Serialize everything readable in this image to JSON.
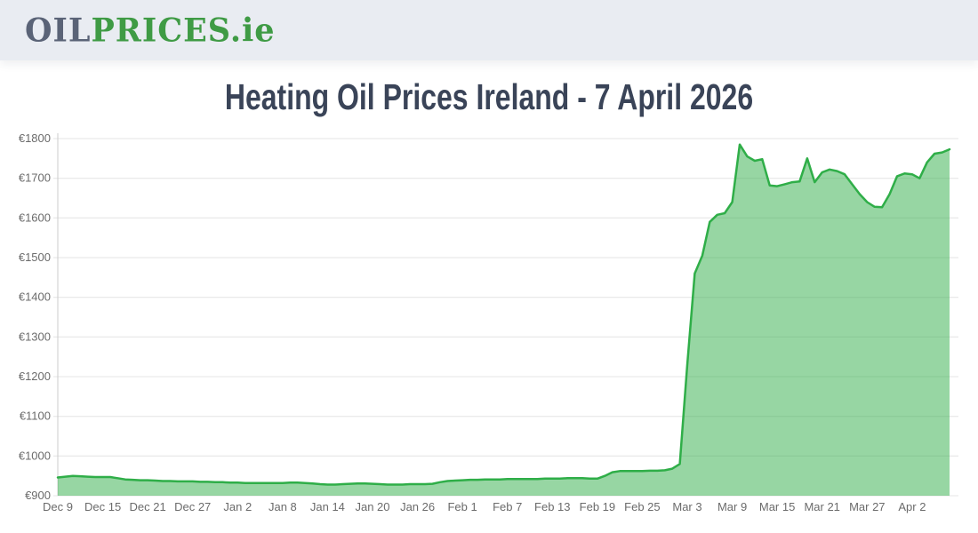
{
  "header": {
    "logo_part1": "OIL",
    "logo_part2": "PRICES",
    "logo_part3": ".ie"
  },
  "main": {
    "title": "Heating Oil Prices Ireland - 7 April 2026"
  },
  "colors": {
    "header_bg": "#e9ecf2",
    "logo_gray": "#5a6377",
    "logo_green": "#3f9b45",
    "title_color": "#3a4458"
  },
  "chart_data": {
    "type": "area",
    "title": "Heating Oil Prices Ireland - 7 April 2026",
    "currency": "€",
    "xlabel": "",
    "ylabel": "",
    "ylim": [
      900,
      1800
    ],
    "grid": true,
    "legend": false,
    "line_color": "#2fae48",
    "fill_color": "rgba(47,174,72,0.5)",
    "grid_color": "#e4e4e4",
    "axis_color": "#cccccc",
    "tick_label_color": "#6b6b6b",
    "y_tick_labels": [
      "€900",
      "€1000",
      "€1100",
      "€1200",
      "€1300",
      "€1400",
      "€1500",
      "€1600",
      "€1700",
      "€1800"
    ],
    "x_tick_labels": [
      "Dec 9",
      "Dec 15",
      "Dec 21",
      "Dec 27",
      "Jan 2",
      "Jan 8",
      "Jan 14",
      "Jan 20",
      "Jan 26",
      "Feb 1",
      "Feb 7",
      "Feb 13",
      "Feb 19",
      "Feb 25",
      "Mar 3",
      "Mar 9",
      "Mar 15",
      "Mar 21",
      "Mar 27",
      "Apr 2"
    ],
    "x_tick_days": [
      0,
      6,
      12,
      18,
      24,
      30,
      36,
      42,
      48,
      54,
      60,
      66,
      72,
      78,
      84,
      90,
      96,
      102,
      108,
      114
    ],
    "dates": [
      "Dec 9",
      "Dec 10",
      "Dec 11",
      "Dec 12",
      "Dec 13",
      "Dec 14",
      "Dec 15",
      "Dec 16",
      "Dec 17",
      "Dec 18",
      "Dec 19",
      "Dec 20",
      "Dec 21",
      "Dec 22",
      "Dec 23",
      "Dec 24",
      "Dec 25",
      "Dec 26",
      "Dec 27",
      "Dec 28",
      "Dec 29",
      "Dec 30",
      "Dec 31",
      "Jan 1",
      "Jan 2",
      "Jan 3",
      "Jan 4",
      "Jan 5",
      "Jan 6",
      "Jan 7",
      "Jan 8",
      "Jan 9",
      "Jan 10",
      "Jan 11",
      "Jan 12",
      "Jan 13",
      "Jan 14",
      "Jan 15",
      "Jan 16",
      "Jan 17",
      "Jan 18",
      "Jan 19",
      "Jan 20",
      "Jan 21",
      "Jan 22",
      "Jan 23",
      "Jan 24",
      "Jan 25",
      "Jan 26",
      "Jan 27",
      "Jan 28",
      "Jan 29",
      "Jan 30",
      "Jan 31",
      "Feb 1",
      "Feb 2",
      "Feb 3",
      "Feb 4",
      "Feb 5",
      "Feb 6",
      "Feb 7",
      "Feb 8",
      "Feb 9",
      "Feb 10",
      "Feb 11",
      "Feb 12",
      "Feb 13",
      "Feb 14",
      "Feb 15",
      "Feb 16",
      "Feb 17",
      "Feb 18",
      "Feb 19",
      "Feb 20",
      "Feb 21",
      "Feb 22",
      "Feb 23",
      "Feb 24",
      "Feb 25",
      "Feb 26",
      "Feb 27",
      "Feb 28",
      "Mar 1",
      "Mar 2",
      "Mar 3",
      "Mar 4",
      "Mar 5",
      "Mar 6",
      "Mar 7",
      "Mar 8",
      "Mar 9",
      "Mar 10",
      "Mar 11",
      "Mar 12",
      "Mar 13",
      "Mar 14",
      "Mar 15",
      "Mar 16",
      "Mar 17",
      "Mar 18",
      "Mar 19",
      "Mar 20",
      "Mar 21",
      "Mar 22",
      "Mar 23",
      "Mar 24",
      "Mar 25",
      "Mar 26",
      "Mar 27",
      "Mar 28",
      "Mar 29",
      "Mar 30",
      "Mar 31",
      "Apr 1",
      "Apr 2",
      "Apr 3",
      "Apr 4",
      "Apr 5",
      "Apr 6",
      "Apr 7"
    ],
    "values": [
      946,
      948,
      950,
      949,
      948,
      947,
      947,
      947,
      944,
      941,
      940,
      939,
      939,
      938,
      937,
      937,
      936,
      936,
      936,
      935,
      935,
      934,
      934,
      933,
      933,
      932,
      932,
      932,
      932,
      932,
      932,
      933,
      933,
      932,
      931,
      929,
      928,
      928,
      929,
      930,
      931,
      931,
      930,
      929,
      928,
      928,
      928,
      929,
      929,
      929,
      930,
      934,
      937,
      938,
      939,
      940,
      940,
      941,
      941,
      941,
      942,
      942,
      942,
      942,
      942,
      943,
      943,
      943,
      944,
      944,
      944,
      943,
      943,
      950,
      959,
      962,
      962,
      962,
      962,
      963,
      963,
      964,
      968,
      980,
      1230,
      1460,
      1505,
      1590,
      1608,
      1612,
      1640,
      1785,
      1755,
      1744,
      1748,
      1682,
      1680,
      1685,
      1690,
      1692,
      1750,
      1690,
      1715,
      1722,
      1718,
      1710,
      1685,
      1660,
      1640,
      1628,
      1627,
      1660,
      1705,
      1712,
      1710,
      1700,
      1740,
      1762,
      1765,
      1773
    ]
  }
}
